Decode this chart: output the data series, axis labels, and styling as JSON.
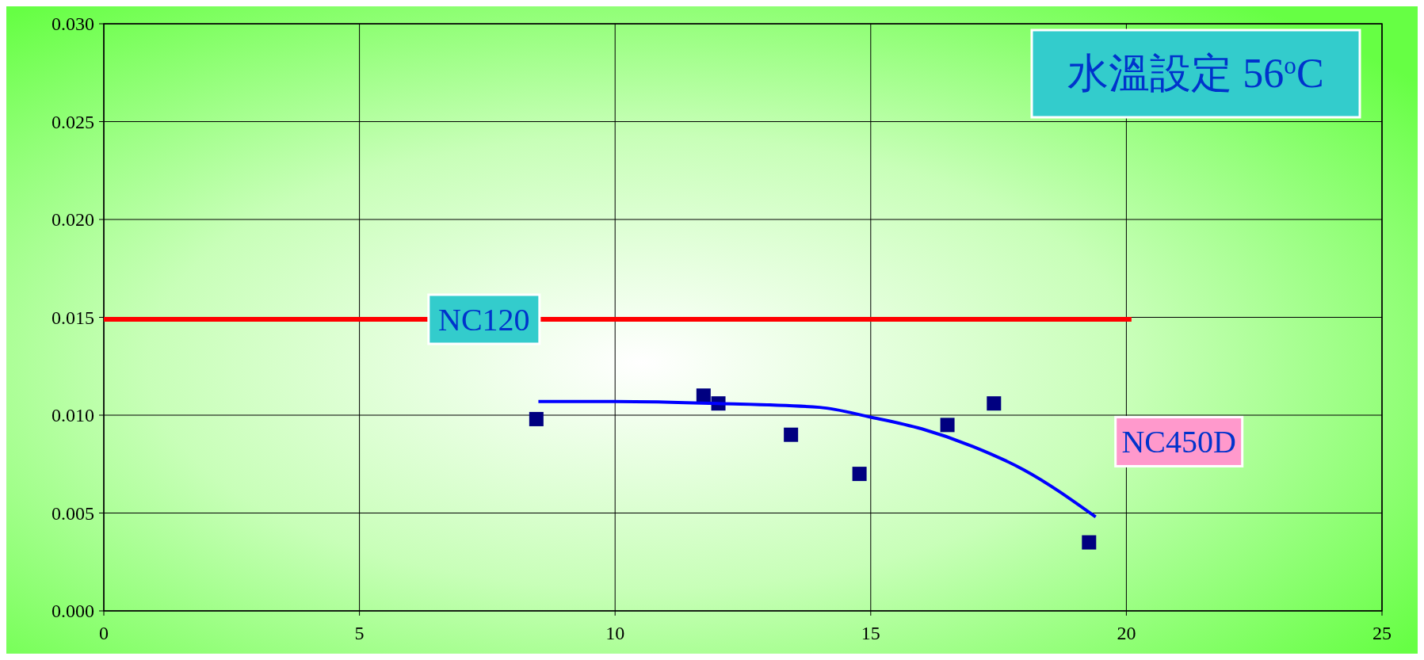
{
  "chart_data": {
    "type": "scatter",
    "annotations": [
      "水溫設定 56$^{o}$C"
    ],
    "xlim": [
      0,
      25
    ],
    "xticks": [
      0,
      5,
      10,
      15,
      20,
      25
    ],
    "ylim": [
      0,
      0.03
    ],
    "yticks": [
      {
        "value": 0,
        "label": "0.000"
      },
      {
        "value": 0.005,
        "label": "0.005"
      },
      {
        "value": 0.01,
        "label": "0.010"
      },
      {
        "value": 0.015,
        "label": "0.015"
      },
      {
        "value": 0.02,
        "label": "0.020"
      },
      {
        "value": 0.025,
        "label": "0.025"
      },
      {
        "value": 0.03,
        "label": "0.030"
      }
    ],
    "grid": true,
    "series": [
      {
        "type": "line",
        "name": "NC120",
        "color": "#ff0000",
        "x": [
          0,
          20.1
        ],
        "values": [
          0.0149,
          0.0149
        ]
      },
      {
        "marker": "square",
        "color": "#000080",
        "x": [
          8.46,
          11.73,
          12.02,
          13.44,
          14.78,
          16.5,
          17.41,
          19.27
        ],
        "values": [
          0.0098,
          0.011,
          0.0106,
          0.009,
          0.007,
          0.0095,
          0.0106,
          0.0035
        ]
      },
      {
        "type": "line",
        "name": "NC450D",
        "color": "#0000ff",
        "x": [
          8.5,
          10,
          12,
          14,
          15,
          16,
          17,
          18,
          19.4
        ],
        "values": [
          0.0107,
          0.0107,
          0.0106,
          0.0104,
          0.0099,
          0.0093,
          0.0084,
          0.0072,
          0.0048
        ]
      }
    ]
  }
}
